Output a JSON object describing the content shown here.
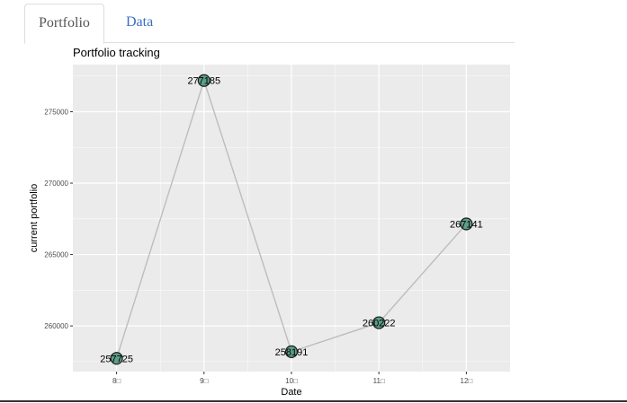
{
  "tabs": [
    {
      "label": "Portfolio",
      "active": true
    },
    {
      "label": "Data",
      "active": false
    }
  ],
  "chart_data": {
    "type": "line",
    "title": "Portfolio tracking",
    "xlabel": "Date",
    "ylabel": "current portfolio",
    "x": [
      "8月",
      "9月",
      "10月",
      "11月",
      "12月"
    ],
    "x_tick_labels": [
      "8□",
      "9□",
      "10□",
      "11□",
      "12□"
    ],
    "values": [
      257725,
      277185,
      258191,
      260222,
      267141
    ],
    "point_labels": [
      "257725",
      "277185",
      "258191",
      "260222",
      "267141"
    ],
    "y_ticks": [
      260000,
      265000,
      270000,
      275000
    ],
    "y_tick_labels": [
      "260000",
      "265000",
      "270000",
      "275000"
    ],
    "ylim": [
      256800,
      278300
    ],
    "grid": true,
    "colors": {
      "panel": "#ebebeb",
      "grid": "#ffffff",
      "line": "#bdbdbd",
      "point_fill": "#5e9e8a",
      "point_stroke": "#1a1a1a"
    }
  }
}
